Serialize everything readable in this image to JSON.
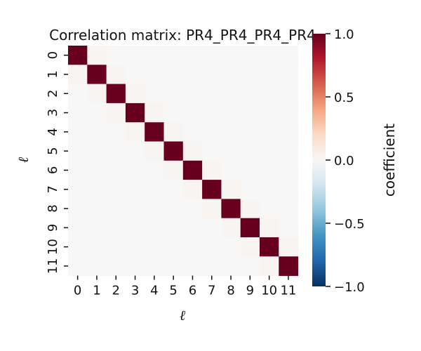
{
  "chart_data": {
    "type": "heatmap",
    "title": "Correlation matrix: PR4_PR4_PR4_PR4",
    "xlabel": "ℓ",
    "ylabel": "ℓ",
    "x_ticks": [
      "0",
      "1",
      "2",
      "3",
      "4",
      "5",
      "6",
      "7",
      "8",
      "9",
      "10",
      "11"
    ],
    "y_ticks": [
      "0",
      "1",
      "2",
      "3",
      "4",
      "5",
      "6",
      "7",
      "8",
      "9",
      "10",
      "11"
    ],
    "matrix": [
      [
        1.0,
        0.02,
        0.0,
        0.0,
        0.0,
        0.0,
        0.0,
        0.0,
        0.0,
        0.0,
        0.0,
        0.0
      ],
      [
        0.02,
        1.0,
        0.02,
        0.0,
        0.0,
        0.0,
        0.0,
        0.0,
        0.0,
        0.0,
        0.0,
        0.0
      ],
      [
        0.0,
        0.02,
        1.0,
        0.02,
        0.0,
        0.0,
        0.0,
        0.0,
        0.0,
        0.0,
        0.0,
        0.0
      ],
      [
        0.0,
        0.0,
        0.02,
        1.0,
        0.02,
        0.0,
        0.0,
        0.0,
        0.0,
        0.0,
        0.0,
        0.0
      ],
      [
        0.0,
        0.0,
        0.0,
        0.02,
        1.0,
        0.02,
        0.0,
        0.0,
        0.0,
        0.0,
        0.0,
        0.0
      ],
      [
        0.0,
        0.0,
        0.0,
        0.0,
        0.02,
        1.0,
        0.02,
        0.0,
        0.0,
        0.0,
        0.0,
        0.0
      ],
      [
        0.0,
        0.0,
        0.0,
        0.0,
        0.0,
        0.02,
        1.0,
        0.02,
        0.0,
        0.0,
        0.0,
        0.0
      ],
      [
        0.0,
        0.0,
        0.0,
        0.0,
        0.0,
        0.0,
        0.02,
        1.0,
        0.02,
        0.0,
        0.0,
        0.0
      ],
      [
        0.0,
        0.0,
        0.0,
        0.0,
        0.0,
        0.0,
        0.0,
        0.02,
        1.0,
        0.02,
        0.0,
        0.0
      ],
      [
        0.0,
        0.0,
        0.0,
        0.0,
        0.0,
        0.0,
        0.0,
        0.0,
        0.02,
        1.0,
        0.02,
        0.0
      ],
      [
        0.0,
        0.0,
        0.0,
        0.0,
        0.0,
        0.0,
        0.0,
        0.0,
        0.0,
        0.02,
        1.0,
        0.02
      ],
      [
        0.0,
        0.0,
        0.0,
        0.0,
        0.0,
        0.0,
        0.0,
        0.0,
        0.0,
        0.0,
        0.02,
        1.0
      ]
    ],
    "colorbar": {
      "label": "coefficient",
      "range": [
        -1.0,
        1.0
      ],
      "ticks": [
        "−1.0",
        "−0.5",
        "0.0",
        "0.5",
        "1.0"
      ],
      "tick_values": [
        -1.0,
        -0.5,
        0.0,
        0.5,
        1.0
      ],
      "colormap": "RdBu_r"
    },
    "grid": false
  },
  "colors": {
    "low": "#053061",
    "mid": "#f7f7f7",
    "high": "#67001f"
  }
}
